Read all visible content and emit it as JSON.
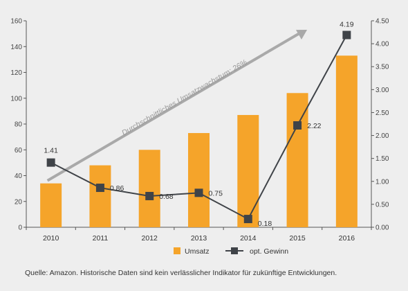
{
  "chart_data": {
    "type": "bar+line",
    "categories": [
      "2010",
      "2011",
      "2012",
      "2013",
      "2014",
      "2015",
      "2016"
    ],
    "series": [
      {
        "name": "Umsatz",
        "type": "bar",
        "axis": "left",
        "color": "#f5a42a",
        "values": [
          34,
          48,
          60,
          73,
          87,
          104,
          133
        ]
      },
      {
        "name": "opt. Gewinn",
        "type": "line",
        "axis": "right",
        "color": "#3f4348",
        "values": [
          1.41,
          0.86,
          0.68,
          0.75,
          0.18,
          2.22,
          4.19
        ],
        "labels": [
          "1.41",
          "0.86",
          "0.68",
          "0.75",
          "0.18",
          "2.22",
          "4.19"
        ]
      }
    ],
    "y_left": {
      "min": 0,
      "max": 160,
      "ticks": [
        "0",
        "20",
        "40",
        "60",
        "80",
        "100",
        "120",
        "140",
        "160"
      ]
    },
    "y_right": {
      "min": 0,
      "max": 4.5,
      "ticks": [
        "0.00",
        "0.50",
        "1.00",
        "1.50",
        "2.00",
        "2.50",
        "3.00",
        "3.50",
        "4.00",
        "4.50"
      ]
    },
    "annotation": {
      "text": "Durchschnittliches Umsatzwachstum: 26%",
      "color": "#a9a9a9"
    },
    "legend": {
      "position": "bottom",
      "items": [
        "Umsatz",
        "opt. Gewinn"
      ]
    }
  },
  "source_note": "Quelle: Amazon. Historische Daten sind kein verlässlicher Indikator für zukünftige Entwicklungen."
}
